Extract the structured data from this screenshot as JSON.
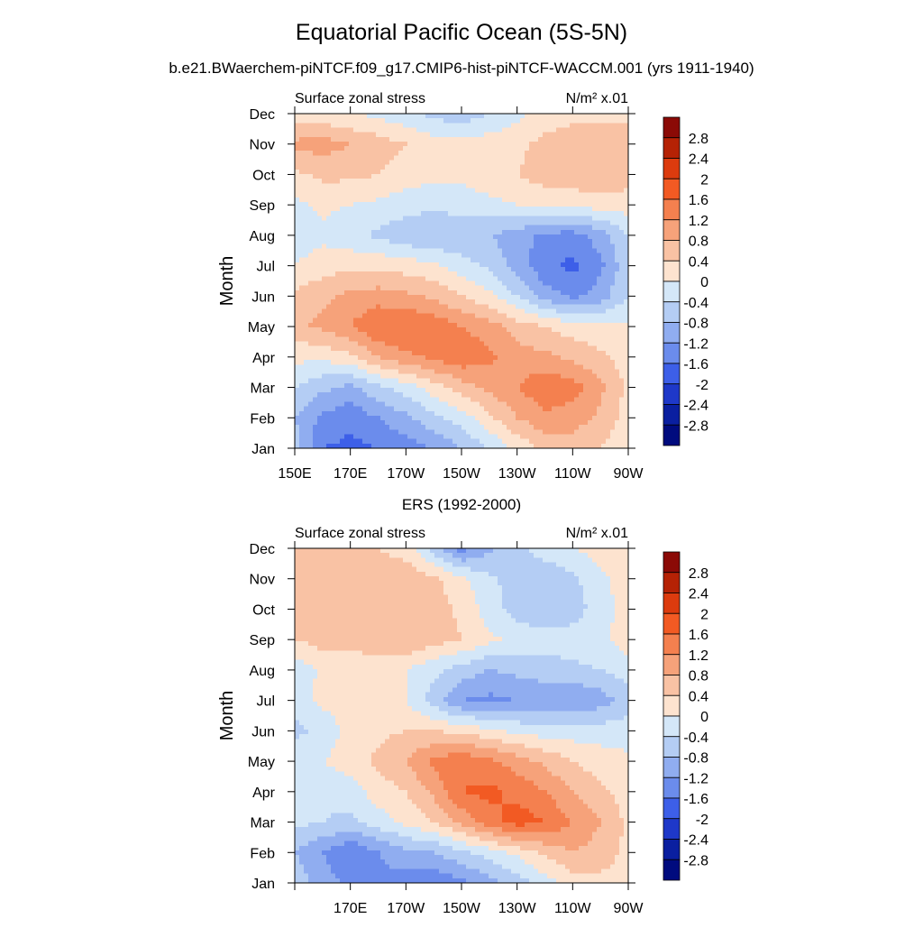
{
  "title": "Equatorial Pacific Ocean (5S-5N)",
  "subtitle": "b.e21.BWaerchem-piNTCF.f09_g17.CMIP6-hist-piNTCF-WACCM.001 (yrs 1911-1940)",
  "colorbar": {
    "levels": [
      "2.8",
      "2.4",
      "2",
      "1.6",
      "1.2",
      "0.8",
      "0.4",
      "0",
      "-0.4",
      "-0.8",
      "-1.2",
      "-1.6",
      "-2",
      "-2.4",
      "-2.8"
    ],
    "colors": [
      "#8b0a06",
      "#b52205",
      "#dc3b0e",
      "#f25a23",
      "#f4804f",
      "#f6a27a",
      "#f9c2a4",
      "#fde3cf",
      "#d4e7f8",
      "#b4cdf4",
      "#90adf0",
      "#6b8cec",
      "#3d5fe8",
      "#1e38c9",
      "#0a1fa0",
      "#000b7e"
    ]
  },
  "chart_data": [
    {
      "type": "heatmap",
      "title": "",
      "left_label": "Surface zonal stress",
      "units": "N/m² x.01",
      "ylabel": "Month",
      "xlabel": "",
      "x_ticks": [
        "150E",
        "170E",
        "170W",
        "150W",
        "130W",
        "110W",
        "90W"
      ],
      "y_ticks": [
        "Jan",
        "Feb",
        "Mar",
        "Apr",
        "May",
        "Jun",
        "Jul",
        "Aug",
        "Sep",
        "Oct",
        "Nov",
        "Dec"
      ],
      "x_lon": [
        150,
        160,
        170,
        180,
        190,
        200,
        210,
        220,
        230,
        240,
        250,
        260,
        270
      ],
      "values": [
        [
          -0.6,
          -1.6,
          -1.7,
          -1.6,
          -1.4,
          -1.2,
          -0.8,
          -0.4,
          0.1,
          0.5,
          0.6,
          0.4,
          0.1
        ],
        [
          -0.8,
          -1.3,
          -1.5,
          -1.2,
          -0.9,
          -0.5,
          -0.2,
          0.3,
          0.8,
          1.1,
          1.0,
          0.7,
          0.2
        ],
        [
          -0.4,
          -0.7,
          -0.9,
          -0.5,
          -0.2,
          0.2,
          0.6,
          0.9,
          1.2,
          1.5,
          1.4,
          0.9,
          0.3
        ],
        [
          0.1,
          0.1,
          0.3,
          0.8,
          1.1,
          1.3,
          1.5,
          1.3,
          1.0,
          0.9,
          0.7,
          0.5,
          0.2
        ],
        [
          0.7,
          0.9,
          1.2,
          1.6,
          1.6,
          1.5,
          1.2,
          1.0,
          0.6,
          0.4,
          0.2,
          0.1,
          0.1
        ],
        [
          0.5,
          0.7,
          0.9,
          1.0,
          0.9,
          0.7,
          0.4,
          0.1,
          -0.4,
          -1.0,
          -1.3,
          -1.0,
          -0.4
        ],
        [
          0.0,
          0.2,
          0.3,
          0.3,
          0.2,
          0.1,
          -0.2,
          -0.5,
          -1.0,
          -1.5,
          -1.7,
          -1.3,
          -0.5
        ],
        [
          -0.2,
          -0.1,
          -0.3,
          -0.5,
          -0.7,
          -0.8,
          -0.8,
          -0.8,
          -1.0,
          -1.3,
          -1.4,
          -1.0,
          -0.4
        ],
        [
          -0.1,
          0.1,
          0.0,
          -0.1,
          -0.2,
          -0.3,
          -0.2,
          -0.1,
          0.0,
          0.1,
          0.1,
          0.2,
          0.2
        ],
        [
          0.3,
          0.5,
          0.5,
          0.4,
          0.2,
          0.1,
          0.1,
          0.2,
          0.4,
          0.6,
          0.7,
          0.7,
          0.6
        ],
        [
          0.9,
          1.0,
          0.8,
          0.6,
          0.4,
          0.2,
          0.2,
          0.2,
          0.3,
          0.5,
          0.6,
          0.7,
          0.7
        ],
        [
          0.2,
          0.1,
          0.0,
          -0.1,
          -0.3,
          -0.5,
          -0.7,
          -0.4,
          -0.1,
          0.2,
          0.3,
          0.3,
          0.3
        ]
      ]
    },
    {
      "type": "heatmap",
      "title": "ERS (1992-2000)",
      "left_label": "Surface zonal stress",
      "units": "N/m² x.01",
      "ylabel": "Month",
      "xlabel": "",
      "x_ticks": [
        "",
        "170E",
        "170W",
        "150W",
        "130W",
        "110W",
        "90W"
      ],
      "y_ticks": [
        "Jan",
        "Feb",
        "Mar",
        "Apr",
        "May",
        "Jun",
        "Jul",
        "Aug",
        "Sep",
        "Oct",
        "Nov",
        "Dec"
      ],
      "x_lon": [
        150,
        160,
        170,
        180,
        190,
        200,
        210,
        220,
        230,
        240,
        250,
        260,
        270
      ],
      "values": [
        [
          -0.5,
          -1.0,
          -1.3,
          -1.3,
          -1.4,
          -1.5,
          -1.3,
          -1.0,
          -0.6,
          -0.2,
          0.2,
          0.3,
          0.2
        ],
        [
          -0.8,
          -1.2,
          -1.6,
          -1.2,
          -0.9,
          -0.8,
          -0.5,
          -0.2,
          0.1,
          0.5,
          0.8,
          0.6,
          0.3
        ],
        [
          -0.3,
          -0.4,
          -0.5,
          -0.2,
          0.1,
          0.4,
          0.9,
          1.4,
          1.8,
          1.6,
          1.2,
          0.8,
          0.3
        ],
        [
          -0.2,
          -0.3,
          -0.2,
          0.2,
          0.4,
          0.9,
          1.6,
          1.7,
          1.5,
          1.2,
          0.8,
          0.5,
          0.2
        ],
        [
          -0.2,
          0.0,
          0.2,
          0.5,
          0.8,
          1.3,
          1.5,
          1.3,
          1.0,
          0.7,
          0.4,
          0.2,
          0.1
        ],
        [
          -0.5,
          -0.3,
          0.2,
          0.3,
          0.4,
          0.4,
          0.3,
          0.1,
          -0.1,
          -0.2,
          -0.2,
          -0.2,
          -0.2
        ],
        [
          -0.2,
          0.1,
          0.2,
          0.1,
          0.0,
          -0.6,
          -1.2,
          -1.3,
          -1.2,
          -1.1,
          -1.2,
          -1.0,
          -0.6
        ],
        [
          -0.3,
          0.1,
          0.2,
          0.1,
          0.0,
          -0.3,
          -0.6,
          -0.8,
          -0.7,
          -0.6,
          -0.5,
          -0.4,
          -0.2
        ],
        [
          0.4,
          0.6,
          0.5,
          0.7,
          0.8,
          0.6,
          0.4,
          0.1,
          -0.1,
          -0.2,
          -0.2,
          -0.1,
          0.2
        ],
        [
          0.5,
          0.6,
          0.5,
          0.7,
          0.8,
          0.6,
          0.3,
          -0.2,
          -0.6,
          -0.8,
          -0.6,
          -0.2,
          0.2
        ],
        [
          0.6,
          0.7,
          0.6,
          0.6,
          0.7,
          0.5,
          0.1,
          -0.3,
          -0.6,
          -0.7,
          -0.5,
          -0.1,
          0.2
        ],
        [
          0.4,
          0.6,
          0.5,
          0.4,
          0.2,
          -0.6,
          -1.4,
          -0.9,
          -0.5,
          -0.2,
          0.0,
          0.2,
          0.3
        ]
      ]
    }
  ]
}
